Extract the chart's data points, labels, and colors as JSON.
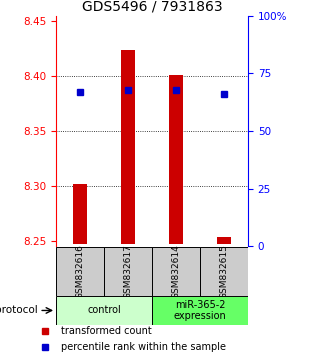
{
  "title": "GDS5496 / 7931863",
  "samples": [
    "GSM832616",
    "GSM832617",
    "GSM832614",
    "GSM832615"
  ],
  "transformed_counts": [
    8.302,
    8.424,
    8.401,
    8.253
  ],
  "percentile_ranks": [
    67,
    68,
    68,
    66
  ],
  "bar_bottom": 8.247,
  "ylim_left": [
    8.245,
    8.455
  ],
  "ylim_right": [
    0,
    100
  ],
  "yticks_left": [
    8.25,
    8.3,
    8.35,
    8.4,
    8.45
  ],
  "yticks_right": [
    0,
    25,
    50,
    75,
    100
  ],
  "ytick_labels_right": [
    "0",
    "25",
    "50",
    "75",
    "100%"
  ],
  "gridlines": [
    8.3,
    8.35,
    8.4
  ],
  "bar_color": "#cc0000",
  "dot_color": "#0000cc",
  "groups": [
    {
      "label": "control",
      "samples": [
        0,
        1
      ],
      "color": "#ccffcc"
    },
    {
      "label": "miR-365-2\nexpression",
      "samples": [
        2,
        3
      ],
      "color": "#66ff66"
    }
  ],
  "protocol_label": "protocol",
  "legend_items": [
    {
      "color": "#cc0000",
      "label": "transformed count"
    },
    {
      "color": "#0000cc",
      "label": "percentile rank within the sample"
    }
  ],
  "background_color": "#ffffff",
  "sample_box_color": "#cccccc",
  "title_fontsize": 10,
  "tick_fontsize": 7.5,
  "bar_width": 0.3
}
